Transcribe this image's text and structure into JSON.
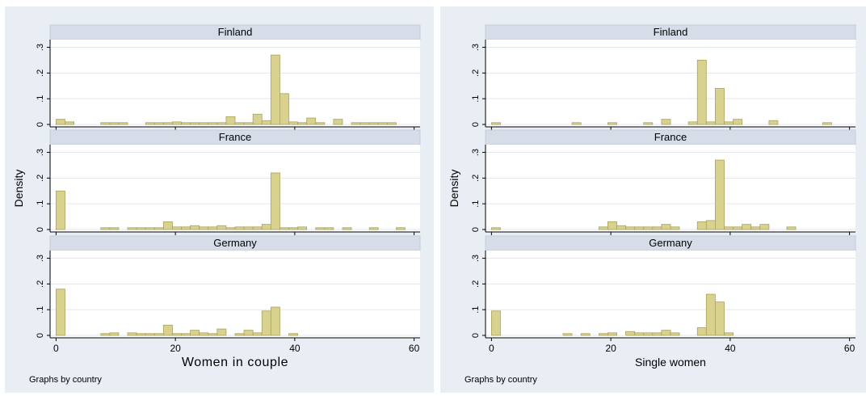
{
  "chart_data": [
    {
      "type": "bar",
      "xlabel": "Women in couple",
      "ylabel": "Density",
      "xlim": [
        -1,
        61
      ],
      "ylim": [
        0,
        0.33
      ],
      "xticks": [
        0,
        20,
        40,
        60
      ],
      "yticks": [
        0,
        0.1,
        0.2,
        0.3
      ],
      "ytick_labels": [
        "0",
        ".1",
        ".2",
        ".3"
      ],
      "bin_width": 1.5,
      "note": "Graphs by country",
      "panels": [
        {
          "title": "Finland",
          "bins": [
            [
              0,
              0.02
            ],
            [
              1.5,
              0.01
            ],
            [
              7.5,
              0.007
            ],
            [
              9,
              0.007
            ],
            [
              10.5,
              0.007
            ],
            [
              15,
              0.007
            ],
            [
              16.5,
              0.007
            ],
            [
              18,
              0.007
            ],
            [
              19.5,
              0.01
            ],
            [
              21,
              0.007
            ],
            [
              22.5,
              0.007
            ],
            [
              24,
              0.007
            ],
            [
              25.5,
              0.007
            ],
            [
              27,
              0.007
            ],
            [
              28.5,
              0.03
            ],
            [
              30,
              0.007
            ],
            [
              31.5,
              0.007
            ],
            [
              33,
              0.04
            ],
            [
              34.5,
              0.015
            ],
            [
              36,
              0.27
            ],
            [
              37.5,
              0.12
            ],
            [
              39,
              0.01
            ],
            [
              40.5,
              0.007
            ],
            [
              42,
              0.025
            ],
            [
              43.5,
              0.007
            ],
            [
              46.5,
              0.02
            ],
            [
              49.5,
              0.007
            ],
            [
              51,
              0.007
            ],
            [
              52.5,
              0.007
            ],
            [
              54,
              0.007
            ],
            [
              55.5,
              0.007
            ]
          ]
        },
        {
          "title": "France",
          "bins": [
            [
              0,
              0.15
            ],
            [
              7.5,
              0.007
            ],
            [
              9,
              0.007
            ],
            [
              12,
              0.007
            ],
            [
              13.5,
              0.007
            ],
            [
              15,
              0.007
            ],
            [
              16.5,
              0.007
            ],
            [
              18,
              0.03
            ],
            [
              19.5,
              0.01
            ],
            [
              21,
              0.01
            ],
            [
              22.5,
              0.015
            ],
            [
              24,
              0.01
            ],
            [
              25.5,
              0.01
            ],
            [
              27,
              0.015
            ],
            [
              28.5,
              0.007
            ],
            [
              30,
              0.01
            ],
            [
              31.5,
              0.01
            ],
            [
              33,
              0.01
            ],
            [
              34.5,
              0.02
            ],
            [
              36,
              0.22
            ],
            [
              37.5,
              0.007
            ],
            [
              39,
              0.007
            ],
            [
              40.5,
              0.01
            ],
            [
              43.5,
              0.007
            ],
            [
              45,
              0.007
            ],
            [
              48,
              0.007
            ],
            [
              52.5,
              0.007
            ],
            [
              57,
              0.007
            ]
          ]
        },
        {
          "title": "Germany",
          "bins": [
            [
              0,
              0.18
            ],
            [
              7.5,
              0.007
            ],
            [
              9,
              0.01
            ],
            [
              12,
              0.01
            ],
            [
              13.5,
              0.007
            ],
            [
              15,
              0.007
            ],
            [
              16.5,
              0.007
            ],
            [
              18,
              0.04
            ],
            [
              19.5,
              0.007
            ],
            [
              21,
              0.007
            ],
            [
              22.5,
              0.02
            ],
            [
              24,
              0.01
            ],
            [
              25.5,
              0.007
            ],
            [
              27,
              0.025
            ],
            [
              30,
              0.007
            ],
            [
              31.5,
              0.02
            ],
            [
              33,
              0.01
            ],
            [
              34.5,
              0.095
            ],
            [
              36,
              0.11
            ],
            [
              39,
              0.007
            ]
          ]
        }
      ]
    },
    {
      "type": "bar",
      "xlabel": "Single women",
      "ylabel": "Density",
      "xlim": [
        -1,
        61
      ],
      "ylim": [
        0,
        0.33
      ],
      "xticks": [
        0,
        20,
        40,
        60
      ],
      "yticks": [
        0,
        0.1,
        0.2,
        0.3
      ],
      "ytick_labels": [
        "0",
        ".1",
        ".2",
        ".3"
      ],
      "bin_width": 1.5,
      "note": "Graphs by country",
      "panels": [
        {
          "title": "Finland",
          "bins": [
            [
              0,
              0.007
            ],
            [
              13.5,
              0.007
            ],
            [
              19.5,
              0.007
            ],
            [
              25.5,
              0.007
            ],
            [
              28.5,
              0.02
            ],
            [
              33,
              0.01
            ],
            [
              34.5,
              0.25
            ],
            [
              36,
              0.01
            ],
            [
              37.5,
              0.14
            ],
            [
              39,
              0.01
            ],
            [
              40.5,
              0.02
            ],
            [
              46.5,
              0.015
            ],
            [
              55.5,
              0.007
            ]
          ]
        },
        {
          "title": "France",
          "bins": [
            [
              0,
              0.007
            ],
            [
              18,
              0.01
            ],
            [
              19.5,
              0.03
            ],
            [
              21,
              0.015
            ],
            [
              22.5,
              0.01
            ],
            [
              24,
              0.01
            ],
            [
              25.5,
              0.01
            ],
            [
              27,
              0.01
            ],
            [
              28.5,
              0.02
            ],
            [
              30,
              0.01
            ],
            [
              34.5,
              0.03
            ],
            [
              36,
              0.035
            ],
            [
              37.5,
              0.27
            ],
            [
              39,
              0.01
            ],
            [
              40.5,
              0.01
            ],
            [
              42,
              0.02
            ],
            [
              43.5,
              0.01
            ],
            [
              45,
              0.02
            ],
            [
              49.5,
              0.01
            ]
          ]
        },
        {
          "title": "Germany",
          "bins": [
            [
              0,
              0.095
            ],
            [
              12,
              0.007
            ],
            [
              15,
              0.007
            ],
            [
              18,
              0.007
            ],
            [
              19.5,
              0.01
            ],
            [
              22.5,
              0.015
            ],
            [
              24,
              0.01
            ],
            [
              25.5,
              0.01
            ],
            [
              27,
              0.01
            ],
            [
              28.5,
              0.02
            ],
            [
              30,
              0.01
            ],
            [
              34.5,
              0.03
            ],
            [
              36,
              0.16
            ],
            [
              37.5,
              0.13
            ],
            [
              39,
              0.01
            ]
          ]
        }
      ]
    }
  ]
}
